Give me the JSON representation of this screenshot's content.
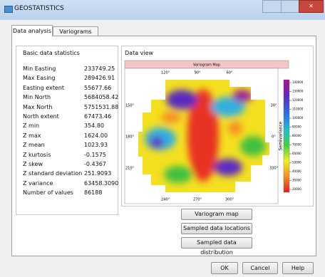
{
  "window": {
    "title": "GEOSTATISTICS"
  },
  "tabs": [
    "Data analysis",
    "Variograms"
  ],
  "statistics": {
    "title": "Basic data statistics",
    "rows": [
      [
        "Min Easting",
        "233749.25"
      ],
      [
        "Max Easing",
        "289426.91"
      ],
      [
        "Easting extent",
        "55677.66"
      ],
      [
        "Min North",
        "5684058.42"
      ],
      [
        "Max North",
        "5751531.88"
      ],
      [
        "North extent",
        "67473.46"
      ],
      [
        "Z min",
        "354.80"
      ],
      [
        "Z max",
        "1624.00"
      ],
      [
        "Z mean",
        "1023.93"
      ],
      [
        "Z kurtosis",
        "-0.1575"
      ],
      [
        "Z skew",
        "-0.4367"
      ],
      [
        "Z standard deviation",
        "251.9093"
      ],
      [
        "Z variance",
        "63458.3090"
      ],
      [
        "Number of values",
        "86188"
      ]
    ]
  },
  "data_view": {
    "title": "Data view",
    "plot": {
      "title": "Variogram Map",
      "top_labels": [
        "120°",
        "90°",
        "60°"
      ],
      "left_labels": [
        "150°",
        "180°",
        "210°"
      ],
      "bottom_labels": [
        "240°",
        "270°",
        "300°"
      ],
      "right_labels": [
        "30°",
        "0°",
        "330°"
      ],
      "colorbar_label": "Semivariance",
      "colorbar_ticks": [
        140000,
        130000,
        120000,
        110000,
        100000,
        90000,
        80000,
        70000,
        60000,
        50000,
        40000,
        30000,
        20000
      ]
    },
    "buttons": [
      "Variogram map",
      "Sampled data locations",
      "Sampled data distribution"
    ]
  },
  "footer_buttons": [
    "OK",
    "Cancel",
    "Help"
  ]
}
